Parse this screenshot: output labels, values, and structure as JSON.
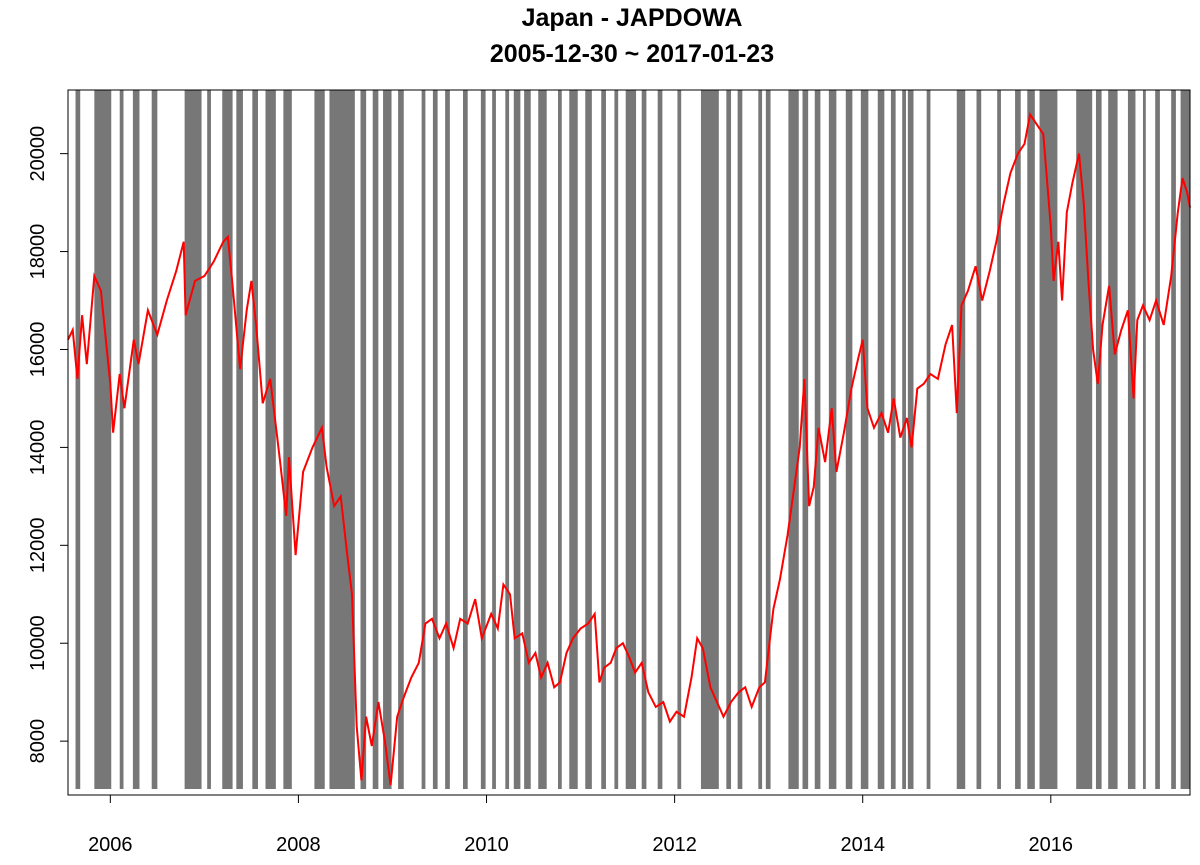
{
  "chart_data": {
    "type": "line",
    "title": "Japan - JAPDOWA",
    "subtitle": "2005-12-30 ~ 2017-01-23",
    "xlim": [
      2005.55,
      2017.48
    ],
    "xticks": [
      2006,
      2008,
      2010,
      2012,
      2014,
      2016
    ],
    "ylim": [
      6900,
      21300
    ],
    "yticks": [
      8000,
      10000,
      12000,
      14000,
      16000,
      18000,
      20000
    ],
    "color": "#ff0000",
    "shade_color": "#777777",
    "shaded": [
      [
        2005.63,
        2005.68
      ],
      [
        2005.83,
        2006.01
      ],
      [
        2006.1,
        2006.14
      ],
      [
        2006.24,
        2006.31
      ],
      [
        2006.44,
        2006.5
      ],
      [
        2006.79,
        2006.97
      ],
      [
        2007.03,
        2007.07
      ],
      [
        2007.19,
        2007.3
      ],
      [
        2007.34,
        2007.41
      ],
      [
        2007.51,
        2007.57
      ],
      [
        2007.65,
        2007.76
      ],
      [
        2007.84,
        2007.93
      ],
      [
        2008.17,
        2008.28
      ],
      [
        2008.33,
        2008.6
      ],
      [
        2008.66,
        2008.72
      ],
      [
        2008.79,
        2008.85
      ],
      [
        2008.9,
        2008.99
      ],
      [
        2009.06,
        2009.12
      ],
      [
        2009.31,
        2009.35
      ],
      [
        2009.43,
        2009.48
      ],
      [
        2009.56,
        2009.61
      ],
      [
        2009.75,
        2009.8
      ],
      [
        2009.94,
        2009.99
      ],
      [
        2010.06,
        2010.1
      ],
      [
        2010.2,
        2010.24
      ],
      [
        2010.29,
        2010.36
      ],
      [
        2010.4,
        2010.47
      ],
      [
        2010.55,
        2010.64
      ],
      [
        2010.76,
        2010.8
      ],
      [
        2010.88,
        2010.97
      ],
      [
        2011.05,
        2011.12
      ],
      [
        2011.22,
        2011.27
      ],
      [
        2011.36,
        2011.4
      ],
      [
        2011.48,
        2011.59
      ],
      [
        2011.65,
        2011.7
      ],
      [
        2011.82,
        2011.87
      ],
      [
        2012.03,
        2012.07
      ],
      [
        2012.28,
        2012.47
      ],
      [
        2012.55,
        2012.6
      ],
      [
        2012.67,
        2012.72
      ],
      [
        2012.89,
        2012.93
      ],
      [
        2012.97,
        2013.02
      ],
      [
        2013.21,
        2013.32
      ],
      [
        2013.36,
        2013.42
      ],
      [
        2013.49,
        2013.55
      ],
      [
        2013.64,
        2013.72
      ],
      [
        2013.82,
        2013.89
      ],
      [
        2013.98,
        2014.06
      ],
      [
        2014.16,
        2014.23
      ],
      [
        2014.3,
        2014.35
      ],
      [
        2014.42,
        2014.46
      ],
      [
        2014.48,
        2014.54
      ],
      [
        2014.68,
        2014.72
      ],
      [
        2015.0,
        2015.09
      ],
      [
        2015.21,
        2015.26
      ],
      [
        2015.43,
        2015.47
      ],
      [
        2015.62,
        2015.68
      ],
      [
        2015.75,
        2015.83
      ],
      [
        2015.88,
        2016.07
      ],
      [
        2016.27,
        2016.44
      ],
      [
        2016.48,
        2016.54
      ],
      [
        2016.61,
        2016.71
      ],
      [
        2016.82,
        2016.9
      ],
      [
        2016.98,
        2017.01
      ],
      [
        2017.11,
        2017.16
      ],
      [
        2017.28,
        2017.33
      ],
      [
        2017.38,
        2017.48
      ]
    ],
    "x": [
      2005.55,
      2005.6,
      2005.65,
      2005.7,
      2005.75,
      2005.83,
      2005.9,
      2006.0,
      2006.03,
      2006.1,
      2006.15,
      2006.25,
      2006.3,
      2006.4,
      2006.5,
      2006.6,
      2006.7,
      2006.78,
      2006.8,
      2006.9,
      2007.0,
      2007.1,
      2007.2,
      2007.25,
      2007.3,
      2007.38,
      2007.45,
      2007.5,
      2007.55,
      2007.62,
      2007.7,
      2007.8,
      2007.87,
      2007.9,
      2007.97,
      2008.05,
      2008.15,
      2008.25,
      2008.3,
      2008.38,
      2008.45,
      2008.52,
      2008.57,
      2008.62,
      2008.67,
      2008.72,
      2008.78,
      2008.85,
      2008.92,
      2008.98,
      2009.05,
      2009.12,
      2009.2,
      2009.28,
      2009.35,
      2009.42,
      2009.5,
      2009.57,
      2009.65,
      2009.72,
      2009.8,
      2009.88,
      2009.95,
      2010.05,
      2010.12,
      2010.18,
      2010.25,
      2010.3,
      2010.38,
      2010.45,
      2010.52,
      2010.58,
      2010.65,
      2010.72,
      2010.78,
      2010.85,
      2010.92,
      2011.0,
      2011.08,
      2011.15,
      2011.2,
      2011.25,
      2011.32,
      2011.38,
      2011.45,
      2011.52,
      2011.58,
      2011.65,
      2011.72,
      2011.8,
      2011.88,
      2011.95,
      2012.02,
      2012.1,
      2012.18,
      2012.24,
      2012.3,
      2012.38,
      2012.45,
      2012.52,
      2012.6,
      2012.68,
      2012.75,
      2012.82,
      2012.9,
      2012.96,
      2013.05,
      2013.12,
      2013.2,
      2013.28,
      2013.33,
      2013.38,
      2013.43,
      2013.48,
      2013.53,
      2013.6,
      2013.67,
      2013.72,
      2013.8,
      2013.88,
      2013.95,
      2014.0,
      2014.05,
      2014.12,
      2014.2,
      2014.27,
      2014.33,
      2014.4,
      2014.47,
      2014.52,
      2014.58,
      2014.65,
      2014.72,
      2014.8,
      2014.88,
      2014.95,
      2015.0,
      2015.05,
      2015.12,
      2015.2,
      2015.27,
      2015.35,
      2015.42,
      2015.5,
      2015.57,
      2015.65,
      2015.72,
      2015.78,
      2015.85,
      2015.92,
      2016.0,
      2016.03,
      2016.08,
      2016.12,
      2016.17,
      2016.23,
      2016.3,
      2016.35,
      2016.4,
      2016.45,
      2016.5,
      2016.55,
      2016.62,
      2016.68,
      2016.75,
      2016.82,
      2016.88,
      2016.92,
      2016.98,
      2017.05,
      2017.12,
      2017.2,
      2017.28,
      2017.35,
      2017.4,
      2017.45,
      2017.48
    ],
    "values": [
      16200,
      16400,
      15400,
      16700,
      15700,
      17500,
      17200,
      15300,
      14300,
      15500,
      14800,
      16200,
      15700,
      16800,
      16300,
      17000,
      17600,
      18200,
      16700,
      17400,
      17500,
      17800,
      18200,
      18300,
      17300,
      15600,
      16800,
      17400,
      16500,
      14900,
      15400,
      13800,
      12600,
      13800,
      11800,
      13500,
      14000,
      14400,
      13600,
      12800,
      13000,
      11800,
      11000,
      8300,
      7200,
      8500,
      7900,
      8800,
      8000,
      7100,
      8500,
      8900,
      9300,
      9600,
      10400,
      10500,
      10100,
      10400,
      9900,
      10500,
      10400,
      10900,
      10100,
      10600,
      10300,
      11200,
      11000,
      10100,
      10200,
      9600,
      9800,
      9300,
      9600,
      9100,
      9200,
      9800,
      10100,
      10300,
      10400,
      10600,
      9200,
      9500,
      9600,
      9900,
      10000,
      9700,
      9400,
      9600,
      9000,
      8700,
      8800,
      8400,
      8600,
      8500,
      9300,
      10100,
      9900,
      9100,
      8800,
      8500,
      8800,
      9000,
      9100,
      8700,
      9100,
      9200,
      10700,
      11300,
      12200,
      13300,
      14000,
      15400,
      12800,
      13200,
      14400,
      13700,
      14800,
      13500,
      14300,
      15200,
      15800,
      16200,
      14800,
      14400,
      14700,
      14300,
      15000,
      14200,
      14600,
      14000,
      15200,
      15300,
      15500,
      15400,
      16100,
      16500,
      14700,
      16900,
      17200,
      17700,
      17000,
      17600,
      18200,
      19000,
      19600,
      20000,
      20200,
      20800,
      20600,
      20400,
      18500,
      17400,
      18200,
      17000,
      18800,
      19400,
      20000,
      19000,
      17400,
      16000,
      15300,
      16500,
      17300,
      15900,
      16400,
      16800,
      15000,
      16600,
      16900,
      16600,
      17000,
      16500,
      17500,
      18800,
      19500,
      19200,
      18900
    ]
  }
}
